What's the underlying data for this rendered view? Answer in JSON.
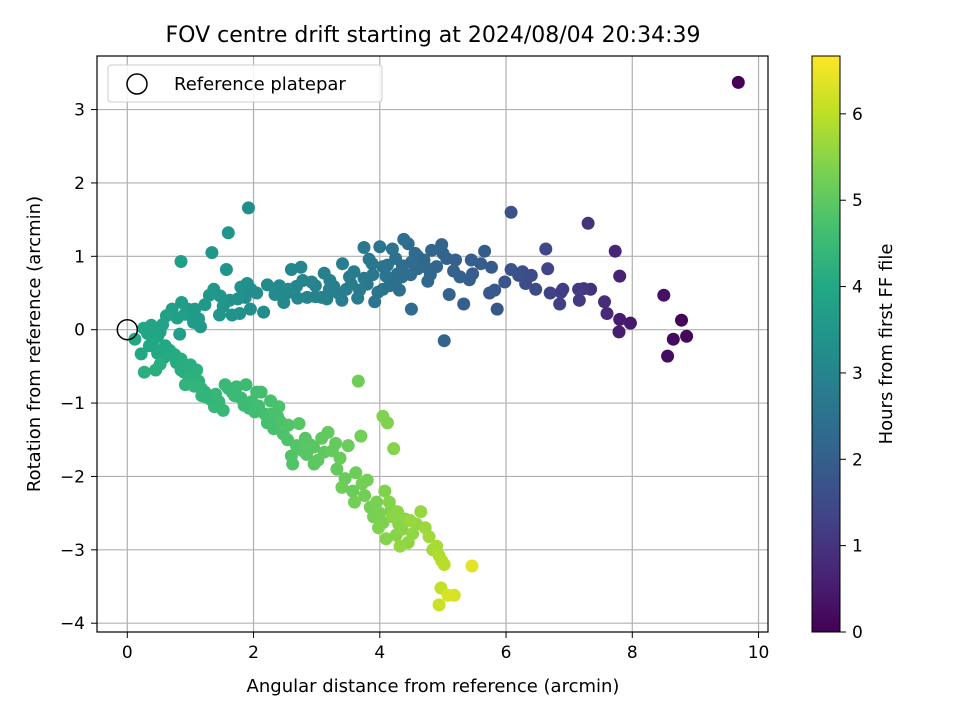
{
  "chart_data": {
    "type": "scatter",
    "title": "FOV centre drift starting at 2024/08/04 20:34:39",
    "xlabel": "Angular distance from reference (arcmin)",
    "ylabel": "Rotation from reference (arcmin)",
    "xlim": [
      -0.48,
      10.15
    ],
    "ylim": [
      -4.12,
      3.73
    ],
    "xticks": [
      0,
      2,
      4,
      6,
      8,
      10
    ],
    "yticks": [
      -4,
      -3,
      -2,
      -1,
      0,
      1,
      2,
      3
    ],
    "grid": true,
    "legend": {
      "position": "top-left",
      "entries": [
        "Reference platepar"
      ]
    },
    "reference_point": {
      "x": 0,
      "y": 0
    },
    "colorbar": {
      "label": "Hours from first FF file",
      "colormap": "viridis",
      "range": [
        0,
        6.67
      ],
      "ticks": [
        0,
        1,
        2,
        3,
        4,
        5,
        6
      ]
    },
    "points": [
      [
        9.68,
        3.37,
        0.0
      ],
      [
        8.78,
        0.13,
        0.08
      ],
      [
        8.86,
        -0.09,
        0.12
      ],
      [
        8.65,
        -0.13,
        0.18
      ],
      [
        8.56,
        -0.36,
        0.22
      ],
      [
        8.5,
        0.47,
        0.3
      ],
      [
        7.97,
        0.09,
        0.45
      ],
      [
        7.8,
        0.14,
        0.5
      ],
      [
        7.79,
        -0.03,
        0.55
      ],
      [
        7.8,
        0.73,
        0.62
      ],
      [
        7.73,
        1.07,
        0.7
      ],
      [
        7.6,
        0.22,
        0.8
      ],
      [
        7.56,
        0.38,
        0.85
      ],
      [
        7.34,
        0.55,
        0.92
      ],
      [
        7.3,
        1.45,
        0.98
      ],
      [
        7.23,
        0.56,
        1.05
      ],
      [
        7.16,
        0.4,
        1.12
      ],
      [
        6.87,
        0.51,
        1.2
      ],
      [
        6.85,
        0.35,
        1.25
      ],
      [
        6.7,
        0.5,
        1.3
      ],
      [
        6.66,
        0.83,
        1.35
      ],
      [
        6.63,
        1.1,
        1.42
      ],
      [
        6.47,
        0.55,
        1.5
      ],
      [
        6.31,
        0.63,
        1.55
      ],
      [
        6.26,
        0.79,
        1.6
      ],
      [
        6.2,
        0.74,
        1.62
      ],
      [
        6.08,
        1.6,
        1.68
      ],
      [
        6.08,
        0.82,
        1.7
      ],
      [
        5.98,
        0.65,
        1.75
      ],
      [
        5.86,
        0.28,
        1.78
      ],
      [
        5.82,
        0.54,
        1.82
      ],
      [
        5.74,
        0.5,
        1.85
      ],
      [
        5.77,
        0.85,
        1.88
      ],
      [
        5.66,
        1.07,
        1.92
      ],
      [
        5.47,
        0.76,
        1.95
      ],
      [
        5.45,
        0.95,
        1.98
      ],
      [
        5.42,
        0.68,
        2.0
      ],
      [
        5.33,
        0.35,
        2.02
      ],
      [
        5.27,
        0.72,
        2.05
      ],
      [
        5.17,
        0.8,
        2.08
      ],
      [
        5.1,
        0.48,
        2.1
      ],
      [
        5.06,
        0.97,
        2.12
      ],
      [
        5.02,
        -0.15,
        2.14
      ],
      [
        5.0,
        1.04,
        2.16
      ],
      [
        4.98,
        1.16,
        2.18
      ],
      [
        4.9,
        0.86,
        2.2
      ],
      [
        4.8,
        0.75,
        2.22
      ],
      [
        4.76,
        0.66,
        2.24
      ],
      [
        4.72,
        0.86,
        2.26
      ],
      [
        4.61,
        0.89,
        2.28
      ],
      [
        4.6,
        1.0,
        2.3
      ],
      [
        4.56,
        1.04,
        2.32
      ],
      [
        4.5,
        0.28,
        2.34
      ],
      [
        4.49,
        0.75,
        2.36
      ],
      [
        4.45,
        1.17,
        2.38
      ],
      [
        4.38,
        1.23,
        2.4
      ],
      [
        4.36,
        0.87,
        2.42
      ],
      [
        4.31,
        0.54,
        2.44
      ],
      [
        4.28,
        0.76,
        2.46
      ],
      [
        4.25,
        0.97,
        2.48
      ],
      [
        4.2,
        1.1,
        2.5
      ],
      [
        4.16,
        0.6,
        2.52
      ],
      [
        4.1,
        0.73,
        2.54
      ],
      [
        4.05,
        0.86,
        2.56
      ],
      [
        4.0,
        1.13,
        2.58
      ],
      [
        3.97,
        0.51,
        2.6
      ],
      [
        3.92,
        0.38,
        2.62
      ],
      [
        3.89,
        0.75,
        2.64
      ],
      [
        3.83,
        0.96,
        2.66
      ],
      [
        3.8,
        0.62,
        2.68
      ],
      [
        3.75,
        1.12,
        2.7
      ],
      [
        3.68,
        0.54,
        2.72
      ],
      [
        3.65,
        0.43,
        2.74
      ],
      [
        3.59,
        0.79,
        2.76
      ],
      [
        3.52,
        0.72,
        2.78
      ],
      [
        3.47,
        0.55,
        2.8
      ],
      [
        3.41,
        0.9,
        2.82
      ],
      [
        3.34,
        0.5,
        2.84
      ],
      [
        3.27,
        0.59,
        2.86
      ],
      [
        3.21,
        0.67,
        2.88
      ],
      [
        3.16,
        0.42,
        2.9
      ],
      [
        3.12,
        0.77,
        2.92
      ],
      [
        3.08,
        0.44,
        2.94
      ],
      [
        2.98,
        0.6,
        2.96
      ],
      [
        2.92,
        0.65,
        2.98
      ],
      [
        2.85,
        0.44,
        3.0
      ],
      [
        2.78,
        0.67,
        3.02
      ],
      [
        2.75,
        0.85,
        3.04
      ],
      [
        2.68,
        0.59,
        3.06
      ],
      [
        2.6,
        0.82,
        3.08
      ],
      [
        2.53,
        0.5,
        3.1
      ],
      [
        2.48,
        0.37,
        3.12
      ],
      [
        2.41,
        0.6,
        3.14
      ],
      [
        2.34,
        0.48,
        3.16
      ],
      [
        2.22,
        0.61,
        3.18
      ],
      [
        2.16,
        0.24,
        3.2
      ],
      [
        2.05,
        0.5,
        3.22
      ],
      [
        1.96,
        0.55,
        3.24
      ],
      [
        1.92,
        1.66,
        3.26
      ],
      [
        1.95,
        0.28,
        3.28
      ],
      [
        1.9,
        0.63,
        3.3
      ],
      [
        1.87,
        0.44,
        3.32
      ],
      [
        1.78,
        0.22,
        3.34
      ],
      [
        1.75,
        0.42,
        3.36
      ],
      [
        1.66,
        0.2,
        3.38
      ],
      [
        1.62,
        0.4,
        3.4
      ],
      [
        1.6,
        1.32,
        3.42
      ],
      [
        1.57,
        0.82,
        3.44
      ],
      [
        1.52,
        0.32,
        3.46
      ],
      [
        1.47,
        0.46,
        3.48
      ],
      [
        1.34,
        1.05,
        3.5
      ],
      [
        1.37,
        0.55,
        3.52
      ],
      [
        1.3,
        0.47,
        3.54
      ],
      [
        1.23,
        0.34,
        3.56
      ],
      [
        1.16,
        0.04,
        3.58
      ],
      [
        1.13,
        0.15,
        3.6
      ],
      [
        1.07,
        0.28,
        3.62
      ],
      [
        0.99,
        0.2,
        3.64
      ],
      [
        0.96,
        0.28,
        3.66
      ],
      [
        0.91,
        0.21,
        3.68
      ],
      [
        0.86,
        0.37,
        3.7
      ],
      [
        0.85,
        0.93,
        3.72
      ],
      [
        0.83,
        -0.06,
        3.74
      ],
      [
        0.79,
        0.16,
        3.76
      ],
      [
        0.71,
        0.28,
        3.78
      ],
      [
        0.62,
        0.19,
        3.8
      ],
      [
        0.56,
        0.07,
        3.82
      ],
      [
        0.52,
        -0.03,
        3.84
      ],
      [
        0.48,
        -0.09,
        3.86
      ],
      [
        0.42,
        -0.03,
        3.88
      ],
      [
        0.38,
        0.06,
        3.9
      ],
      [
        0.32,
        -0.05,
        3.92
      ],
      [
        0.26,
        0.02,
        3.94
      ],
      [
        0.22,
        -0.33,
        3.96
      ],
      [
        0.4,
        -0.17,
        3.98
      ],
      [
        0.48,
        -0.32,
        4.0
      ],
      [
        0.55,
        -0.28,
        4.02
      ],
      [
        0.58,
        -0.38,
        4.04
      ],
      [
        0.67,
        -0.28,
        4.06
      ],
      [
        0.75,
        -0.34,
        4.08
      ],
      [
        0.78,
        -0.45,
        4.1
      ],
      [
        0.85,
        -0.55,
        4.12
      ],
      [
        0.9,
        -0.58,
        4.14
      ],
      [
        0.45,
        -0.55,
        4.16
      ],
      [
        0.52,
        -0.47,
        4.18
      ],
      [
        0.27,
        -0.58,
        4.2
      ],
      [
        0.98,
        -0.65,
        4.22
      ],
      [
        1.03,
        -0.72,
        4.24
      ],
      [
        1.13,
        -0.7,
        4.26
      ],
      [
        1.17,
        -0.8,
        4.28
      ],
      [
        1.23,
        -0.85,
        4.3
      ],
      [
        0.92,
        -0.75,
        4.32
      ],
      [
        1.06,
        -0.77,
        4.34
      ],
      [
        1.18,
        -0.9,
        4.36
      ],
      [
        1.32,
        -0.95,
        4.38
      ],
      [
        1.38,
        -1.05,
        4.4
      ],
      [
        1.45,
        -0.98,
        4.42
      ],
      [
        1.52,
        -1.1,
        4.44
      ],
      [
        1.6,
        -0.8,
        4.46
      ],
      [
        1.66,
        -0.85,
        4.48
      ],
      [
        1.73,
        -0.78,
        4.5
      ],
      [
        1.8,
        -0.93,
        4.52
      ],
      [
        1.85,
        -1.03,
        4.54
      ],
      [
        1.93,
        -1.07,
        4.56
      ],
      [
        1.97,
        -0.98,
        4.58
      ],
      [
        2.02,
        -1.12,
        4.6
      ],
      [
        2.08,
        -1.04,
        4.62
      ],
      [
        2.12,
        -0.85,
        4.64
      ],
      [
        2.18,
        -1.15,
        4.66
      ],
      [
        2.22,
        -1.27,
        4.68
      ],
      [
        2.27,
        -0.97,
        4.7
      ],
      [
        2.32,
        -1.35,
        4.72
      ],
      [
        2.38,
        -1.18,
        4.74
      ],
      [
        2.42,
        -1.25,
        4.76
      ],
      [
        2.47,
        -1.42,
        4.78
      ],
      [
        2.54,
        -1.5,
        4.8
      ],
      [
        2.6,
        -1.72,
        4.82
      ],
      [
        2.62,
        -1.83,
        4.84
      ],
      [
        2.68,
        -1.58,
        4.86
      ],
      [
        2.72,
        -1.28,
        4.88
      ],
      [
        2.78,
        -1.65,
        4.9
      ],
      [
        2.84,
        -1.7,
        4.92
      ],
      [
        2.9,
        -1.57,
        4.94
      ],
      [
        2.96,
        -1.83,
        4.96
      ],
      [
        3.02,
        -1.78,
        4.98
      ],
      [
        3.08,
        -1.48,
        5.0
      ],
      [
        3.12,
        -1.67,
        5.02
      ],
      [
        3.18,
        -1.4,
        5.04
      ],
      [
        3.25,
        -1.65,
        5.06
      ],
      [
        3.32,
        -1.9,
        5.08
      ],
      [
        3.37,
        -1.75,
        5.1
      ],
      [
        3.45,
        -2.03,
        5.12
      ],
      [
        3.5,
        -1.58,
        5.14
      ],
      [
        3.57,
        -2.2,
        5.16
      ],
      [
        3.62,
        -1.95,
        5.18
      ],
      [
        3.66,
        -0.7,
        5.2
      ],
      [
        3.7,
        -1.45,
        5.22
      ],
      [
        3.76,
        -2.26,
        5.24
      ],
      [
        3.8,
        -2.05,
        5.26
      ],
      [
        3.85,
        -2.42,
        5.28
      ],
      [
        3.9,
        -2.55,
        5.3
      ],
      [
        3.95,
        -2.35,
        5.32
      ],
      [
        4.0,
        -2.5,
        5.34
      ],
      [
        4.05,
        -2.63,
        5.36
      ],
      [
        4.05,
        -1.18,
        5.38
      ],
      [
        4.12,
        -1.27,
        5.4
      ],
      [
        4.18,
        -2.45,
        5.42
      ],
      [
        4.22,
        -1.62,
        5.44
      ],
      [
        4.26,
        -2.8,
        5.46
      ],
      [
        4.3,
        -2.65,
        5.48
      ],
      [
        4.35,
        -2.72,
        5.5
      ],
      [
        4.4,
        -2.58,
        5.52
      ],
      [
        4.45,
        -2.9,
        5.54
      ],
      [
        4.52,
        -2.78,
        5.56
      ],
      [
        4.58,
        -2.65,
        5.58
      ],
      [
        4.65,
        -2.48,
        5.6
      ],
      [
        4.72,
        -2.7,
        5.65
      ],
      [
        4.78,
        -2.82,
        5.7
      ],
      [
        4.84,
        -3.0,
        5.75
      ],
      [
        4.9,
        -2.95,
        5.8
      ],
      [
        4.94,
        -3.08,
        5.85
      ],
      [
        4.98,
        -3.15,
        5.9
      ],
      [
        5.02,
        -3.2,
        5.95
      ],
      [
        4.97,
        -3.52,
        6.05
      ],
      [
        4.94,
        -3.75,
        6.15
      ],
      [
        5.18,
        -3.62,
        6.25
      ],
      [
        5.08,
        -3.62,
        6.3
      ],
      [
        5.46,
        -3.22,
        6.4
      ],
      [
        4.08,
        -2.2,
        5.4
      ],
      [
        4.15,
        -2.35,
        5.45
      ],
      [
        4.2,
        -2.55,
        5.5
      ],
      [
        4.28,
        -2.48,
        5.52
      ],
      [
        3.98,
        -2.7,
        5.38
      ],
      [
        4.1,
        -2.85,
        5.44
      ],
      [
        4.32,
        -2.95,
        5.58
      ],
      [
        4.48,
        -2.6,
        5.62
      ],
      [
        3.6,
        -2.35,
        5.22
      ],
      [
        3.72,
        -2.1,
        5.28
      ],
      [
        3.4,
        -2.15,
        5.18
      ],
      [
        3.3,
        -1.55,
        5.06
      ],
      [
        2.95,
        -1.6,
        4.94
      ],
      [
        2.82,
        -1.48,
        4.9
      ],
      [
        2.55,
        -1.3,
        4.84
      ],
      [
        2.4,
        -1.05,
        4.76
      ],
      [
        2.28,
        -1.15,
        4.72
      ],
      [
        2.05,
        -0.85,
        4.62
      ],
      [
        1.88,
        -0.75,
        4.56
      ],
      [
        1.7,
        -0.9,
        4.5
      ],
      [
        1.55,
        -0.75,
        4.46
      ],
      [
        1.4,
        -0.88,
        4.42
      ],
      [
        1.25,
        -0.92,
        4.34
      ],
      [
        1.1,
        -0.55,
        4.22
      ],
      [
        1.0,
        -0.48,
        4.18
      ],
      [
        0.85,
        -0.4,
        4.12
      ],
      [
        0.7,
        -0.35,
        4.06
      ],
      [
        0.6,
        -0.22,
        4.0
      ],
      [
        0.35,
        -0.22,
        3.96
      ],
      [
        0.12,
        -0.13,
        3.98
      ],
      [
        4.12,
        0.88,
        2.5
      ],
      [
        4.35,
        0.72,
        2.42
      ],
      [
        4.6,
        0.83,
        2.3
      ],
      [
        4.05,
        0.55,
        2.56
      ],
      [
        3.88,
        0.9,
        2.64
      ],
      [
        3.75,
        0.7,
        2.7
      ],
      [
        3.55,
        0.62,
        2.78
      ],
      [
        3.4,
        0.4,
        2.82
      ],
      [
        3.2,
        0.55,
        2.88
      ],
      [
        2.98,
        0.45,
        2.96
      ],
      [
        2.7,
        0.43,
        3.04
      ],
      [
        4.25,
        0.65,
        2.46
      ],
      [
        4.5,
        0.92,
        2.34
      ],
      [
        4.7,
        0.95,
        2.26
      ],
      [
        4.82,
        1.08,
        2.22
      ],
      [
        5.2,
        0.95,
        2.08
      ],
      [
        5.6,
        0.9,
        1.94
      ],
      [
        6.4,
        0.74,
        1.56
      ],
      [
        6.9,
        0.55,
        1.2
      ],
      [
        7.15,
        0.55,
        1.12
      ],
      [
        1.46,
        0.2,
        3.48
      ],
      [
        1.8,
        0.58,
        3.34
      ],
      [
        2.55,
        0.55,
        3.1
      ],
      [
        1.05,
        0.1,
        3.62
      ]
    ]
  }
}
